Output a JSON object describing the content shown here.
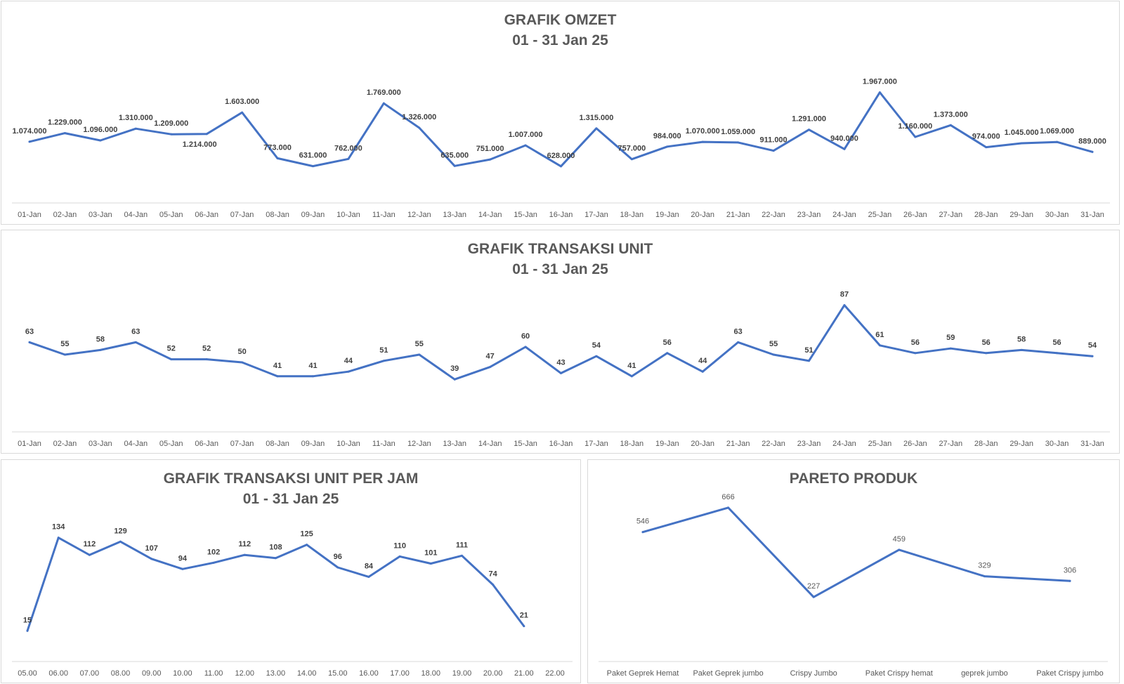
{
  "chart_data": [
    {
      "type": "line",
      "title": "GRAFIK OMZET",
      "subtitle": "01 - 31 Jan 25",
      "categories": [
        "01-Jan",
        "02-Jan",
        "03-Jan",
        "04-Jan",
        "05-Jan",
        "06-Jan",
        "07-Jan",
        "08-Jan",
        "09-Jan",
        "10-Jan",
        "11-Jan",
        "12-Jan",
        "13-Jan",
        "14-Jan",
        "15-Jan",
        "16-Jan",
        "17-Jan",
        "18-Jan",
        "19-Jan",
        "20-Jan",
        "21-Jan",
        "22-Jan",
        "23-Jan",
        "24-Jan",
        "25-Jan",
        "26-Jan",
        "27-Jan",
        "28-Jan",
        "29-Jan",
        "30-Jan",
        "31-Jan"
      ],
      "values": [
        1074000,
        1229000,
        1096000,
        1310000,
        1209000,
        1214000,
        1603000,
        773000,
        631000,
        762000,
        1769000,
        1326000,
        635000,
        751000,
        1007000,
        628000,
        1315000,
        757000,
        984000,
        1070000,
        1059000,
        911000,
        1291000,
        940000,
        1967000,
        1160000,
        1373000,
        974000,
        1045000,
        1069000,
        889000
      ],
      "labels": [
        "1.074.000",
        "1.229.000",
        "1.096.000",
        "1.310.000",
        "1.209.000",
        "1.214.000",
        "1.603.000",
        "773.000",
        "631.000",
        "762.000",
        "1.769.000",
        "1.326.000",
        "635.000",
        "751.000",
        "1.007.000",
        "628.000",
        "1.315.000",
        "757.000",
        "984.000",
        "1.070.000",
        "1.059.000",
        "911.000",
        "1.291.000",
        "940.000",
        "1.967.000",
        "1.160.000",
        "1.373.000",
        "974.000",
        "1.045.000",
        "1.069.000",
        "889.000"
      ],
      "xlabel": "",
      "ylabel": "",
      "grid": false,
      "legend": "none",
      "color": "#4472c4"
    },
    {
      "type": "line",
      "title": "GRAFIK TRANSAKSI UNIT",
      "subtitle": "01 - 31 Jan 25",
      "categories": [
        "01-Jan",
        "02-Jan",
        "03-Jan",
        "04-Jan",
        "05-Jan",
        "06-Jan",
        "07-Jan",
        "08-Jan",
        "09-Jan",
        "10-Jan",
        "11-Jan",
        "12-Jan",
        "13-Jan",
        "14-Jan",
        "15-Jan",
        "16-Jan",
        "17-Jan",
        "18-Jan",
        "19-Jan",
        "20-Jan",
        "21-Jan",
        "22-Jan",
        "23-Jan",
        "24-Jan",
        "25-Jan",
        "26-Jan",
        "27-Jan",
        "28-Jan",
        "29-Jan",
        "30-Jan",
        "31-Jan"
      ],
      "values": [
        63,
        55,
        58,
        63,
        52,
        52,
        50,
        41,
        41,
        44,
        51,
        55,
        39,
        47,
        60,
        43,
        54,
        41,
        56,
        44,
        63,
        55,
        51,
        87,
        61,
        56,
        59,
        56,
        58,
        56,
        54
      ],
      "xlabel": "",
      "ylabel": "",
      "grid": false,
      "legend": "none",
      "color": "#4472c4"
    },
    {
      "type": "line",
      "title": "GRAFIK TRANSAKSI UNIT PER JAM",
      "subtitle": "01 - 31 Jan 25",
      "categories": [
        "05.00",
        "06.00",
        "07.00",
        "08.00",
        "09.00",
        "10.00",
        "11.00",
        "12.00",
        "13.00",
        "14.00",
        "15.00",
        "16.00",
        "17.00",
        "18.00",
        "19.00",
        "20.00",
        "21.00",
        "22.00"
      ],
      "values": [
        15,
        134,
        112,
        129,
        107,
        94,
        102,
        112,
        108,
        125,
        96,
        84,
        110,
        101,
        111,
        74,
        21,
        null
      ],
      "xlabel": "",
      "ylabel": "",
      "grid": false,
      "legend": "none",
      "color": "#4472c4"
    },
    {
      "type": "line",
      "title": "PARETO PRODUK",
      "subtitle": "",
      "categories": [
        "Paket Geprek Hemat",
        "Paket Geprek jumbo",
        "Crispy Jumbo",
        "Paket Crispy hemat",
        "geprek jumbo",
        "Paket Crispy jumbo"
      ],
      "values": [
        546,
        666,
        227,
        459,
        329,
        306
      ],
      "xlabel": "",
      "ylabel": "",
      "grid": false,
      "legend": "none",
      "color": "#4472c4"
    }
  ]
}
